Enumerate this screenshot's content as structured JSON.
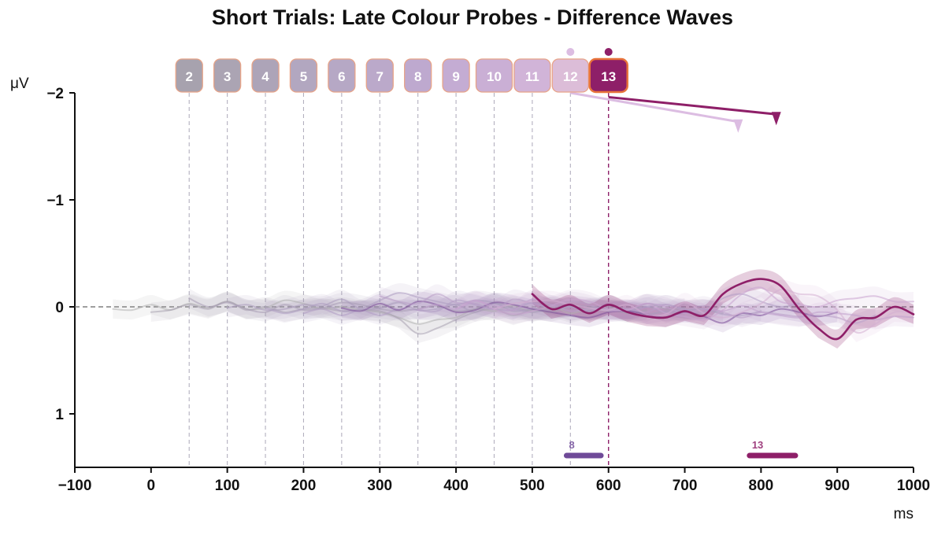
{
  "chart_data": {
    "type": "line",
    "title": "Short Trials: Late Colour Probes - Difference Waves",
    "xlabel": "ms",
    "ylabel": "μV",
    "xlim": [
      -100,
      1000
    ],
    "ylim": [
      -2,
      1.5
    ],
    "y_inverted": true,
    "x_ticks": [
      -100,
      0,
      100,
      200,
      300,
      400,
      500,
      600,
      700,
      800,
      900,
      1000
    ],
    "x_tick_labels": [
      "−100",
      "0",
      "100",
      "200",
      "300",
      "400",
      "500",
      "600",
      "700",
      "800",
      "900",
      "1000"
    ],
    "y_ticks": [
      -2,
      -1,
      0,
      1
    ],
    "y_tick_labels": [
      "−2",
      "−1",
      "0",
      "1"
    ],
    "zero_line": true,
    "grid": false,
    "probes": [
      {
        "label": "2",
        "onset_ms": 50,
        "color": "#a7a2ae",
        "highlighted": false
      },
      {
        "label": "3",
        "onset_ms": 100,
        "color": "#aba4b3",
        "highlighted": false
      },
      {
        "label": "4",
        "onset_ms": 150,
        "color": "#ada4b8",
        "highlighted": false
      },
      {
        "label": "5",
        "onset_ms": 200,
        "color": "#b2a7c0",
        "highlighted": false
      },
      {
        "label": "6",
        "onset_ms": 250,
        "color": "#b6a8c5",
        "highlighted": false
      },
      {
        "label": "7",
        "onset_ms": 300,
        "color": "#bba9ca",
        "highlighted": false
      },
      {
        "label": "8",
        "onset_ms": 350,
        "color": "#bea9cf",
        "highlighted": false
      },
      {
        "label": "9",
        "onset_ms": 400,
        "color": "#c4acd3",
        "highlighted": false
      },
      {
        "label": "10",
        "onset_ms": 450,
        "color": "#caafd5",
        "highlighted": false
      },
      {
        "label": "11",
        "onset_ms": 500,
        "color": "#d1b4d8",
        "highlighted": false
      },
      {
        "label": "12",
        "onset_ms": 550,
        "color": "#dcbdd8",
        "highlighted": false
      },
      {
        "label": "13",
        "onset_ms": 600,
        "color": "#8e1f68",
        "highlighted": true
      }
    ],
    "series": [
      {
        "label": "2",
        "color": "#b0b0b0",
        "onset_ms": 50,
        "x": [
          -50,
          -25,
          0,
          25,
          50,
          75,
          100,
          125,
          150,
          175,
          200,
          225,
          250,
          275,
          300,
          325,
          350,
          375,
          400,
          425,
          450,
          475,
          500,
          525,
          550,
          575,
          600
        ],
        "y": [
          0.02,
          0.03,
          -0.02,
          0.03,
          -0.03,
          0.01,
          -0.05,
          0.02,
          0.01,
          -0.06,
          -0.03,
          0.02,
          0,
          0.03,
          0.05,
          0.1,
          0.16,
          0.12,
          0.1,
          0.02,
          0.04,
          -0.01,
          0.05,
          0,
          0.06,
          0.02,
          0.04
        ]
      },
      {
        "label": "3",
        "color": "#a8a0b0",
        "onset_ms": 100,
        "x": [
          0,
          25,
          50,
          75,
          100,
          125,
          150,
          175,
          200,
          225,
          250,
          275,
          300,
          325,
          350,
          375,
          400,
          425,
          450,
          475,
          500,
          525,
          550,
          575,
          600,
          625,
          650
        ],
        "y": [
          0.05,
          0.03,
          -0.02,
          0.02,
          -0.05,
          0.03,
          0,
          0.05,
          0.02,
          0.01,
          0.04,
          0.03,
          0.04,
          0.11,
          0.25,
          0.2,
          0.12,
          0.05,
          0.02,
          0.08,
          0.03,
          0.05,
          0,
          0.04,
          0.02,
          0.06,
          0.03
        ]
      },
      {
        "label": "4",
        "color": "#a89db4",
        "onset_ms": 150,
        "x": [
          50,
          75,
          100,
          125,
          150,
          175,
          200,
          225,
          250,
          275,
          300,
          325,
          350,
          375,
          400,
          425,
          450,
          475,
          500,
          525,
          550,
          575,
          600,
          625,
          650,
          675,
          700
        ],
        "y": [
          -0.08,
          0,
          -0.04,
          0.02,
          0.05,
          -0.02,
          0.03,
          0.01,
          -0.04,
          -0.02,
          0.02,
          0.04,
          0.02,
          -0.01,
          0.04,
          0.02,
          -0.04,
          0.01,
          0.03,
          -0.02,
          0.04,
          0.01,
          0,
          0.05,
          -0.03,
          0.02,
          0.01
        ]
      },
      {
        "label": "5",
        "color": "#a99abc",
        "onset_ms": 200,
        "x": [
          100,
          125,
          150,
          175,
          200,
          225,
          250,
          275,
          300,
          325,
          350,
          375,
          400,
          425,
          450,
          475,
          500,
          525,
          550,
          575,
          600,
          625,
          650,
          675,
          700,
          725,
          750
        ],
        "y": [
          0.01,
          -0.02,
          0.03,
          0.02,
          -0.02,
          -0.01,
          -0.07,
          0.02,
          0.01,
          -0.04,
          0.03,
          0.02,
          -0.02,
          0.05,
          -0.03,
          0.04,
          0.02,
          0.03,
          -0.01,
          0,
          0.03,
          0.02,
          0.07,
          0.04,
          0.03,
          0.02,
          0.06
        ]
      },
      {
        "label": "6",
        "color": "#ad9cc1",
        "onset_ms": 250,
        "x": [
          150,
          175,
          200,
          225,
          250,
          275,
          300,
          325,
          350,
          375,
          400,
          425,
          450,
          475,
          500,
          525,
          550,
          575,
          600,
          625,
          650,
          675,
          700,
          725,
          750,
          775,
          800
        ],
        "y": [
          0.01,
          0.06,
          0.02,
          -0.03,
          0.04,
          0.02,
          -0.06,
          -0.13,
          -0.09,
          -0.05,
          -0.02,
          -0.06,
          -0.04,
          0.02,
          0.05,
          0.02,
          0,
          0.04,
          -0.02,
          0.03,
          0,
          0.05,
          0.04,
          0.02,
          0.07,
          0.08,
          0.04
        ]
      },
      {
        "label": "7",
        "color": "#b09cc5",
        "onset_ms": 300,
        "x": [
          200,
          225,
          250,
          275,
          300,
          325,
          350,
          375,
          400,
          425,
          450,
          475,
          500,
          525,
          550,
          575,
          600,
          625,
          650,
          675,
          700,
          725,
          750,
          775,
          800,
          825,
          850
        ],
        "y": [
          0.06,
          0.02,
          0.08,
          0.03,
          0.08,
          0.02,
          0.03,
          0.04,
          -0.06,
          -0.02,
          0.02,
          0.03,
          -0.04,
          0.02,
          0,
          0.04,
          -0.02,
          0.05,
          0,
          -0.02,
          0.02,
          0.05,
          -0.08,
          -0.12,
          -0.05,
          0,
          -0.03
        ]
      },
      {
        "label": "8",
        "color": "#7b4f99",
        "onset_ms": 350,
        "x": [
          250,
          275,
          300,
          325,
          350,
          375,
          400,
          425,
          450,
          475,
          500,
          525,
          550,
          575,
          600,
          625,
          650,
          675,
          700,
          725,
          750,
          775,
          800,
          825,
          850,
          875,
          900
        ],
        "y": [
          0.01,
          0.04,
          -0.03,
          0.03,
          -0.05,
          -0.02,
          0.05,
          0.03,
          -0.04,
          -0.02,
          0.02,
          0.05,
          0.08,
          0.1,
          0.05,
          0.04,
          0.07,
          0.1,
          0.05,
          0.09,
          0.15,
          0.06,
          0.08,
          0.02,
          0.05,
          0.09,
          0.05
        ]
      },
      {
        "label": "9",
        "color": "#b89cc7",
        "onset_ms": 400,
        "x": [
          300,
          325,
          350,
          375,
          400,
          425,
          450,
          475,
          500,
          525,
          550,
          575,
          600,
          625,
          650,
          675,
          700,
          725,
          750,
          775,
          800,
          825,
          850,
          875,
          900,
          925,
          950
        ],
        "y": [
          -0.1,
          -0.05,
          -0.03,
          -0.12,
          -0.04,
          -0.03,
          0.02,
          -0.07,
          -0.03,
          0,
          -0.05,
          -0.02,
          0.04,
          0.02,
          0.05,
          -0.02,
          0.03,
          -0.01,
          0.05,
          0.1,
          0.05,
          0.07,
          0.09,
          0.08,
          0.1,
          0.15,
          0.08
        ]
      },
      {
        "label": "10",
        "color": "#c09fcc",
        "onset_ms": 450,
        "x": [
          350,
          375,
          400,
          425,
          450,
          475,
          500,
          525,
          550,
          575,
          600,
          625,
          650,
          675,
          700,
          725,
          750,
          775,
          800,
          825,
          850,
          875,
          900,
          925,
          950,
          975,
          1000
        ],
        "y": [
          0.03,
          -0.02,
          0.02,
          -0.05,
          -0.01,
          0.03,
          -0.07,
          -0.02,
          0.04,
          0.02,
          0.03,
          0.03,
          -0.03,
          0,
          0.06,
          0.02,
          0.04,
          -0.01,
          0.05,
          0.08,
          0.1,
          0.05,
          0.06,
          0.08,
          0.12,
          0.09,
          0.1
        ]
      },
      {
        "label": "11",
        "color": "#c8a3cf",
        "onset_ms": 500,
        "x": [
          400,
          425,
          450,
          475,
          500,
          525,
          550,
          575,
          600,
          625,
          650,
          675,
          700,
          725,
          750,
          775,
          800,
          825,
          850,
          875,
          900,
          925,
          950,
          975,
          1000
        ],
        "y": [
          0.02,
          -0.06,
          0.02,
          0.07,
          0.04,
          -0.01,
          -0.07,
          -0.05,
          0.02,
          0.03,
          -0.03,
          0.06,
          0.09,
          0.12,
          0.03,
          -0.12,
          -0.18,
          -0.05,
          -0.02,
          0,
          -0.06,
          -0.08,
          -0.1,
          -0.05,
          -0.05
        ]
      },
      {
        "label": "12",
        "color": "#d4aed2",
        "onset_ms": 550,
        "x": [
          450,
          475,
          500,
          525,
          550,
          575,
          600,
          625,
          650,
          675,
          700,
          725,
          750,
          775,
          800,
          825,
          850,
          875,
          900,
          925,
          950,
          975,
          1000
        ],
        "y": [
          0.02,
          -0.03,
          -0.05,
          -0.06,
          -0.02,
          0.01,
          0.03,
          -0.02,
          0.07,
          0.07,
          -0.04,
          0.06,
          0.1,
          0.05,
          -0.03,
          -0.16,
          -0.12,
          -0.1,
          0.03,
          0.24,
          0.16,
          0.05,
          0.06
        ]
      },
      {
        "label": "13",
        "color": "#8e1f68",
        "onset_ms": 600,
        "x": [
          500,
          525,
          550,
          575,
          600,
          625,
          650,
          675,
          700,
          725,
          750,
          775,
          800,
          825,
          850,
          875,
          900,
          925,
          950,
          975,
          1000
        ],
        "y": [
          -0.12,
          0.02,
          -0.02,
          0.06,
          -0.02,
          0.05,
          0.09,
          0.1,
          0.04,
          0.08,
          -0.12,
          -0.22,
          -0.26,
          -0.2,
          0.02,
          0.2,
          0.3,
          0.12,
          0.1,
          0,
          0.07
        ]
      }
    ],
    "peak_markers": [
      {
        "label": "12",
        "start_ms": 550,
        "end_ms": 770,
        "start_uv": -2.0,
        "end_uv": -1.73,
        "color": "#dcbde2"
      },
      {
        "label": "13",
        "start_ms": 600,
        "end_ms": 820,
        "start_uv": -1.96,
        "end_uv": -1.8,
        "color": "#8e1f68"
      }
    ],
    "significance_bars": [
      {
        "label": "8",
        "start_ms": 545,
        "end_ms": 590,
        "color": "#6f4a98"
      },
      {
        "label": "13",
        "start_ms": 785,
        "end_ms": 845,
        "color": "#8e1f68"
      }
    ]
  }
}
